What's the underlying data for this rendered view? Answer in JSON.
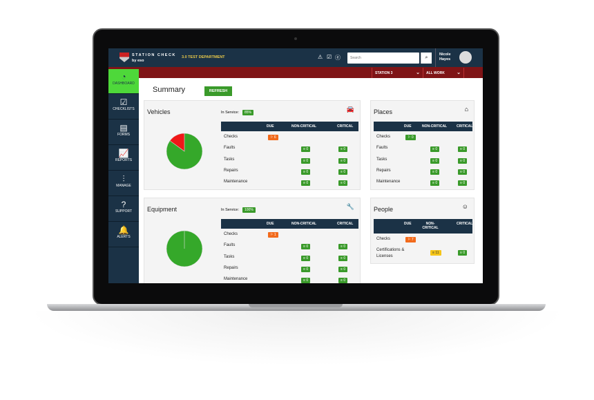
{
  "app": {
    "brand": "STATION CHECK",
    "brand_sub": "by eso",
    "department": "3.0 TEST DEPARTMENT",
    "search_placeholder": "Search",
    "user_first": "Nicole",
    "user_last": "Hayes",
    "station": "STATION 3",
    "filter": "ALL WORK"
  },
  "sidebar": [
    {
      "label": "DASHBOARD",
      "icon": "gauge-icon",
      "active": true
    },
    {
      "label": "CHECKLISTS",
      "icon": "checklist-icon"
    },
    {
      "label": "FORMS",
      "icon": "form-icon"
    },
    {
      "label": "REPORTS",
      "icon": "chart-icon"
    },
    {
      "label": "MANAGE",
      "icon": "sliders-icon"
    },
    {
      "label": "SUPPORT",
      "icon": "help-icon"
    },
    {
      "label": "ALERTS",
      "icon": "bell-icon"
    }
  ],
  "page": {
    "title": "Summary",
    "refresh": "REFRESH"
  },
  "columns": [
    "DUE",
    "NON-CRITICAL",
    "CRITICAL"
  ],
  "colors": {
    "navy": "#1b3246",
    "red": "#7f1416",
    "green": "#3a9a2a",
    "orange": "#f26a1b",
    "yellow": "#f5c518"
  },
  "cards": {
    "vehicles": {
      "title": "Vehicles",
      "in_service_label": "In Service:",
      "in_service": "85%",
      "icon": "car-icon",
      "pie": {
        "in_service": 85,
        "out": 15
      },
      "rows": [
        {
          "label": "Checks",
          "due": "6"
        },
        {
          "label": "Faults",
          "non": "0",
          "crit": "0"
        },
        {
          "label": "Tasks",
          "non": "0",
          "crit": "0"
        },
        {
          "label": "Repairs",
          "non": "0",
          "crit": "0"
        },
        {
          "label": "Maintenance",
          "non": "0",
          "crit": "0"
        }
      ]
    },
    "equipment": {
      "title": "Equipment",
      "in_service_label": "In Service:",
      "in_service": "100%",
      "icon": "wrench-icon",
      "pie": {
        "in_service": 100,
        "out": 0
      },
      "rows": [
        {
          "label": "Checks",
          "due": "1"
        },
        {
          "label": "Faults",
          "non": "0",
          "crit": "0"
        },
        {
          "label": "Tasks",
          "non": "0",
          "crit": "0"
        },
        {
          "label": "Repairs",
          "non": "0",
          "crit": "0"
        },
        {
          "label": "Maintenance",
          "non": "0",
          "crit": "0"
        }
      ]
    },
    "places": {
      "title": "Places",
      "icon": "place-icon",
      "rows": [
        {
          "label": "Checks",
          "due": "0",
          "due_color": "green"
        },
        {
          "label": "Faults",
          "non": "0",
          "crit": "0"
        },
        {
          "label": "Tasks",
          "non": "0",
          "crit": "0"
        },
        {
          "label": "Repairs",
          "non": "0",
          "crit": "0"
        },
        {
          "label": "Maintenance",
          "non": "0",
          "crit": "0"
        }
      ]
    },
    "people": {
      "title": "People",
      "icon": "person-icon",
      "rows": [
        {
          "label": "Checks",
          "due": "7"
        },
        {
          "label": "Certifications & Licenses",
          "non": "11",
          "non_color": "yellow",
          "crit": "0"
        }
      ]
    }
  }
}
